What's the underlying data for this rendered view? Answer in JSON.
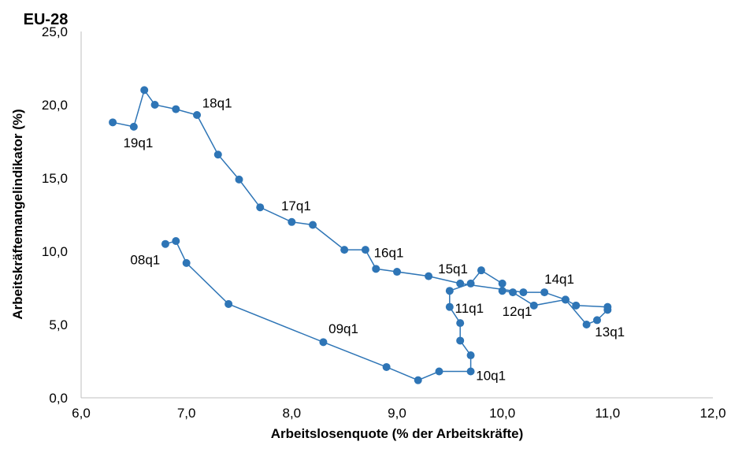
{
  "chart_data": {
    "type": "scatter",
    "title": "EU-28",
    "xlabel": "Arbeitslosenquote (% der Arbeitskräfte)",
    "ylabel": "Arbeitskräftemangelindikator (%)",
    "xlim": [
      6.0,
      12.0
    ],
    "ylim": [
      0.0,
      25.0
    ],
    "xticks": [
      "6,0",
      "7,0",
      "8,0",
      "9,0",
      "10,0",
      "11,0",
      "12,0"
    ],
    "yticks": [
      "0,0",
      "5,0",
      "10,0",
      "15,0",
      "20,0",
      "25,0"
    ],
    "grid": false,
    "color": "#2e75b6",
    "series": [
      {
        "connected": true,
        "points": [
          [
            6.8,
            10.5
          ],
          [
            6.9,
            10.7
          ],
          [
            7.0,
            9.2
          ],
          [
            7.4,
            6.4
          ],
          [
            8.3,
            3.8
          ],
          [
            8.9,
            2.1
          ],
          [
            9.2,
            1.2
          ],
          [
            9.4,
            1.8
          ],
          [
            9.7,
            1.8
          ],
          [
            9.7,
            2.9
          ],
          [
            9.6,
            3.9
          ],
          [
            9.6,
            5.1
          ],
          [
            9.5,
            6.2
          ],
          [
            9.5,
            7.3
          ],
          [
            9.7,
            7.8
          ],
          [
            9.8,
            8.7
          ],
          [
            10.0,
            7.8
          ],
          [
            10.0,
            7.3
          ],
          [
            10.1,
            7.2
          ],
          [
            10.3,
            6.3
          ],
          [
            10.6,
            6.7
          ],
          [
            10.8,
            5.0
          ],
          [
            10.9,
            5.3
          ],
          [
            11.0,
            6.0
          ],
          [
            11.0,
            6.2
          ],
          [
            10.7,
            6.3
          ],
          [
            10.6,
            6.7
          ],
          [
            10.4,
            7.2
          ],
          [
            10.2,
            7.2
          ],
          [
            9.6,
            7.8
          ],
          [
            9.3,
            8.3
          ],
          [
            9.0,
            8.6
          ],
          [
            8.8,
            8.8
          ],
          [
            8.7,
            10.1
          ],
          [
            8.5,
            10.1
          ],
          [
            8.2,
            11.8
          ],
          [
            8.0,
            12.0
          ],
          [
            7.7,
            13.0
          ],
          [
            7.5,
            14.9
          ],
          [
            7.3,
            16.6
          ],
          [
            7.1,
            19.3
          ],
          [
            6.9,
            19.7
          ],
          [
            6.7,
            20.0
          ],
          [
            6.6,
            21.0
          ],
          [
            6.5,
            18.5
          ],
          [
            6.3,
            18.8
          ]
        ]
      }
    ],
    "annotations": [
      {
        "text": "08q1",
        "x": 6.75,
        "y": 9.1,
        "anchor": "end"
      },
      {
        "text": "09q1",
        "x": 8.35,
        "y": 4.4,
        "anchor": "start"
      },
      {
        "text": "10q1",
        "x": 9.75,
        "y": 1.2,
        "anchor": "start"
      },
      {
        "text": "11q1",
        "x": 9.55,
        "y": 5.8,
        "anchor": "start"
      },
      {
        "text": "12q1",
        "x": 10.0,
        "y": 5.6,
        "anchor": "start"
      },
      {
        "text": "13q1",
        "x": 10.88,
        "y": 4.2,
        "anchor": "start"
      },
      {
        "text": "14q1",
        "x": 10.4,
        "y": 7.8,
        "anchor": "start"
      },
      {
        "text": "15q1",
        "x": 9.39,
        "y": 8.5,
        "anchor": "start"
      },
      {
        "text": "16q1",
        "x": 8.78,
        "y": 9.6,
        "anchor": "start"
      },
      {
        "text": "17q1",
        "x": 7.9,
        "y": 12.8,
        "anchor": "start"
      },
      {
        "text": "18q1",
        "x": 7.15,
        "y": 19.8,
        "anchor": "start"
      },
      {
        "text": "19q1",
        "x": 6.4,
        "y": 17.1,
        "anchor": "start"
      }
    ]
  }
}
